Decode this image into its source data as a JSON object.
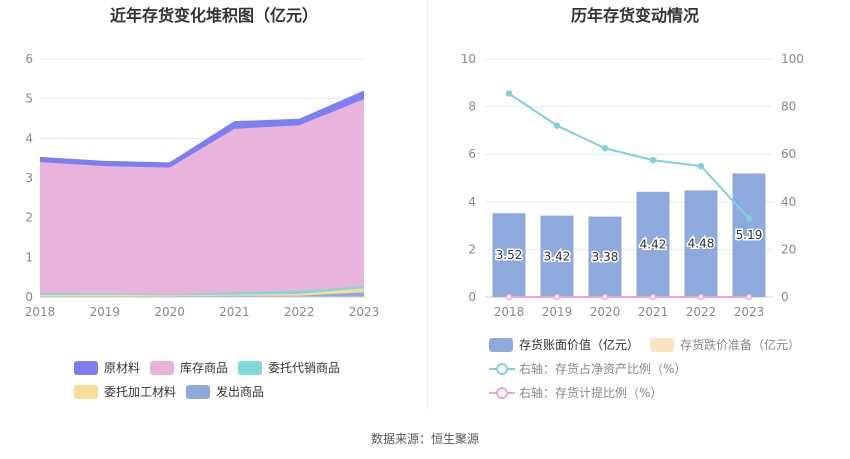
{
  "left_chart": {
    "title": "近年存货变化堆积图（亿元）",
    "legend": [
      {
        "label": "原材料",
        "color": "#7b7ff0"
      },
      {
        "label": "库存商品",
        "color": "#e8b4dc"
      },
      {
        "label": "委托代销商品",
        "color": "#80d8d8"
      },
      {
        "label": "委托加工材料",
        "color": "#f8dc98"
      },
      {
        "label": "发出商品",
        "color": "#8eaadc"
      }
    ]
  },
  "right_chart": {
    "title": "历年存货变动情况",
    "legend": {
      "bar": "存货账面价值（亿元）",
      "reserve": "存货跌价准备（亿元）",
      "line1": "右轴：存货占净资产比例（%）",
      "line2": "右轴：存货计提比例（%）"
    }
  },
  "source": "数据来源：恒生聚源",
  "chart_data": [
    {
      "type": "area",
      "stacked": true,
      "title": "近年存货变化堆积图（亿元）",
      "categories": [
        "2018",
        "2019",
        "2020",
        "2021",
        "2022",
        "2023"
      ],
      "ylim": [
        0,
        6
      ],
      "yticks": [
        "0",
        "1",
        "2",
        "3",
        "4",
        "5",
        "6"
      ],
      "series": [
        {
          "name": "发出商品",
          "color": "#8eaadc",
          "values": [
            0.02,
            0.02,
            0.02,
            0.03,
            0.03,
            0.12
          ]
        },
        {
          "name": "委托加工材料",
          "color": "#f8dc98",
          "values": [
            0.03,
            0.04,
            0.02,
            0.03,
            0.05,
            0.1
          ]
        },
        {
          "name": "委托代销商品",
          "color": "#80d8d8",
          "values": [
            0.05,
            0.04,
            0.02,
            0.06,
            0.07,
            0.05
          ]
        },
        {
          "name": "库存商品",
          "color": "#e8b4dc",
          "values": [
            3.3,
            3.2,
            3.2,
            4.12,
            4.18,
            4.72
          ]
        },
        {
          "name": "原材料",
          "color": "#7b7ff0",
          "values": [
            0.12,
            0.12,
            0.12,
            0.18,
            0.15,
            0.2
          ]
        }
      ],
      "legend_position": "bottom"
    },
    {
      "type": "bar",
      "title": "历年存货变动情况",
      "categories": [
        "2018",
        "2019",
        "2020",
        "2021",
        "2022",
        "2023"
      ],
      "ylim": [
        0,
        10
      ],
      "yticks": [
        "0",
        "2",
        "4",
        "6",
        "8",
        "10"
      ],
      "y2lim": [
        0,
        100
      ],
      "y2ticks": [
        "0",
        "20",
        "40",
        "60",
        "80",
        "100"
      ],
      "series": [
        {
          "name": "存货账面价值（亿元）",
          "kind": "bar",
          "axis": "left",
          "color": "#8eaadc",
          "values": [
            3.52,
            3.42,
            3.38,
            4.42,
            4.48,
            5.19
          ],
          "labels": [
            "3.52",
            "3.42",
            "3.38",
            "4.42",
            "4.48",
            "5.19"
          ]
        },
        {
          "name": "存货跌价准备（亿元）",
          "kind": "bar",
          "axis": "left",
          "color": "#fbe3c0",
          "values": [
            0,
            0,
            0,
            0,
            0,
            0
          ]
        },
        {
          "name": "右轴：存货占净资产比例（%）",
          "kind": "line",
          "axis": "right",
          "color": "#7fd3d8",
          "values": [
            85.5,
            72,
            62.5,
            57.5,
            55,
            33
          ]
        },
        {
          "name": "右轴：存货计提比例（%）",
          "kind": "line",
          "axis": "right",
          "color": "#e8a6d4",
          "values": [
            0,
            0,
            0,
            0,
            0,
            0
          ]
        }
      ],
      "legend_position": "bottom"
    }
  ]
}
